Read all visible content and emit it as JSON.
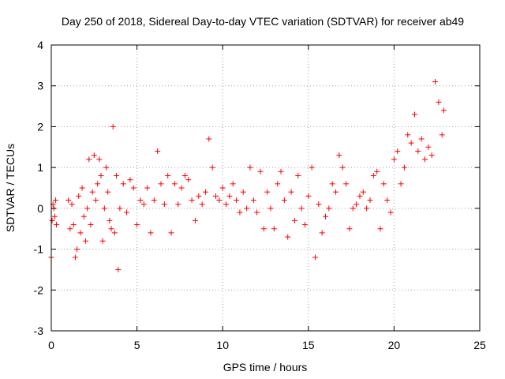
{
  "chart_data": {
    "type": "scatter",
    "title": "Day 250 of 2018, Sidereal Day-to-day VTEC variation (SDTVAR) for receiver ab49",
    "xlabel": "GPS time / hours",
    "ylabel": "SDTVAR / TECUs",
    "xlim": [
      0,
      25
    ],
    "ylim": [
      -3,
      4
    ],
    "xticks": [
      0,
      5,
      10,
      15,
      20,
      25
    ],
    "yticks": [
      -3,
      -2,
      -1,
      0,
      1,
      2,
      3,
      4
    ],
    "xtick_labels": [
      "0",
      "5",
      "10",
      "15",
      "20",
      "25"
    ],
    "ytick_labels": [
      "-3",
      "-2",
      "-1",
      "0",
      "1",
      "2",
      "3",
      "4"
    ],
    "grid": true,
    "marker": "+",
    "color": "#ff0000",
    "series": [
      {
        "name": "SDTVAR",
        "x": [
          0.0,
          0.05,
          0.1,
          0.15,
          0.2,
          0.25,
          0.3,
          1.0,
          1.1,
          1.2,
          1.3,
          1.4,
          1.5,
          1.6,
          1.7,
          1.8,
          1.9,
          2.0,
          2.1,
          2.2,
          2.3,
          2.4,
          2.5,
          2.6,
          2.7,
          2.8,
          2.9,
          3.0,
          3.1,
          3.2,
          3.3,
          3.4,
          3.5,
          3.6,
          3.7,
          3.8,
          3.9,
          4.0,
          4.2,
          4.4,
          4.6,
          4.8,
          5.0,
          5.2,
          5.4,
          5.6,
          5.8,
          6.0,
          6.2,
          6.4,
          6.6,
          6.8,
          7.0,
          7.2,
          7.4,
          7.6,
          7.8,
          8.0,
          8.2,
          8.4,
          8.6,
          8.8,
          9.0,
          9.2,
          9.4,
          9.6,
          9.8,
          10.0,
          10.2,
          10.4,
          10.6,
          10.8,
          11.0,
          11.2,
          11.4,
          11.6,
          11.8,
          12.0,
          12.2,
          12.4,
          12.6,
          12.8,
          13.0,
          13.2,
          13.4,
          13.6,
          13.8,
          14.0,
          14.2,
          14.4,
          14.6,
          14.8,
          15.0,
          15.2,
          15.4,
          15.6,
          15.8,
          16.0,
          16.2,
          16.4,
          16.6,
          16.8,
          17.0,
          17.2,
          17.4,
          17.6,
          17.8,
          18.0,
          18.2,
          18.4,
          18.6,
          18.8,
          19.0,
          19.2,
          19.4,
          19.6,
          19.8,
          20.0,
          20.2,
          20.4,
          20.6,
          20.8,
          21.0,
          21.2,
          21.4,
          21.6,
          21.8,
          22.0,
          22.2,
          22.4,
          22.6,
          22.8,
          22.9
        ],
        "y": [
          -1.2,
          -0.3,
          0.1,
          0.0,
          -0.2,
          0.2,
          -0.4,
          0.2,
          -0.5,
          0.1,
          -0.4,
          -1.2,
          -1.0,
          0.3,
          -0.6,
          0.5,
          -0.2,
          -0.8,
          0.0,
          1.2,
          -0.4,
          0.4,
          1.3,
          0.2,
          0.6,
          1.2,
          0.8,
          -0.8,
          0.0,
          1.0,
          0.4,
          -0.3,
          -0.5,
          2.0,
          -0.6,
          0.8,
          -1.5,
          0.0,
          0.6,
          -0.1,
          0.7,
          0.5,
          -0.4,
          0.2,
          0.1,
          0.5,
          -0.6,
          0.2,
          1.4,
          0.6,
          0.1,
          0.8,
          -0.6,
          0.6,
          0.1,
          0.5,
          0.8,
          0.7,
          0.2,
          -0.3,
          0.3,
          0.1,
          0.4,
          1.7,
          1.0,
          0.3,
          0.2,
          0.5,
          0.1,
          0.3,
          0.6,
          0.2,
          -0.1,
          0.4,
          0.0,
          1.0,
          0.2,
          -0.1,
          0.9,
          -0.5,
          0.4,
          0.0,
          -0.5,
          0.6,
          0.9,
          0.2,
          -0.7,
          0.4,
          -0.3,
          0.8,
          0.0,
          -0.4,
          0.3,
          1.0,
          -1.2,
          0.1,
          -0.6,
          -0.2,
          0.0,
          0.6,
          0.4,
          1.3,
          1.0,
          0.6,
          -0.5,
          0.0,
          0.1,
          0.3,
          0.4,
          0.0,
          0.2,
          0.8,
          0.9,
          -0.5,
          0.6,
          0.2,
          -0.1,
          1.2,
          1.4,
          0.6,
          1.0,
          1.8,
          1.6,
          2.3,
          1.4,
          1.7,
          1.2,
          1.5,
          1.3,
          3.1,
          2.6,
          1.8,
          2.4
        ]
      }
    ],
    "annotations": []
  }
}
